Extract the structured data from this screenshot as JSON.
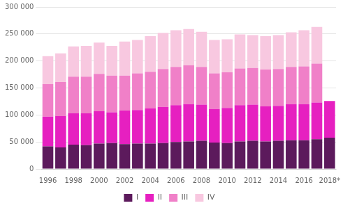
{
  "chart_data": {
    "type": "bar",
    "stacked": true,
    "categories": [
      "1996",
      null,
      "1998",
      null,
      "2000",
      null,
      "2002",
      null,
      "2004",
      null,
      "2006",
      null,
      "2008",
      null,
      "2010",
      null,
      "2012",
      null,
      "2014",
      null,
      "2016",
      null,
      "2018*"
    ],
    "series": [
      {
        "name": "I",
        "color": "#5c1a5c",
        "values": [
          42000,
          40000,
          45000,
          44000,
          47000,
          48000,
          46000,
          47000,
          47000,
          48000,
          50000,
          51000,
          52000,
          49000,
          48000,
          51000,
          52000,
          51000,
          52000,
          53000,
          53000,
          55000,
          58000
        ]
      },
      {
        "name": "II",
        "color": "#e620c0",
        "values": [
          55000,
          58000,
          58000,
          59000,
          60000,
          57000,
          62000,
          62000,
          65000,
          67000,
          68000,
          69000,
          67000,
          62000,
          65000,
          67000,
          67000,
          65000,
          65000,
          67000,
          67000,
          68000,
          68000
        ]
      },
      {
        "name": "III",
        "color": "#f080c8",
        "values": [
          60000,
          63000,
          68000,
          68000,
          69000,
          68000,
          65000,
          68000,
          68000,
          70000,
          71000,
          72000,
          70000,
          66000,
          66000,
          68000,
          68000,
          68000,
          68000,
          69000,
          70000,
          72000,
          0
        ]
      },
      {
        "name": "IV",
        "color": "#f8c8e0",
        "values": [
          52000,
          53000,
          56000,
          57000,
          58000,
          55000,
          63000,
          62000,
          66000,
          67000,
          68000,
          67000,
          65000,
          62000,
          61000,
          63000,
          61000,
          62000,
          63000,
          64000,
          67000,
          68000,
          0
        ]
      }
    ],
    "ylim": [
      0,
      300000
    ],
    "yticks": [
      0,
      {
        "value": 50000,
        "label": "50 000"
      },
      {
        "value": 100000,
        "label": "100 000"
      },
      {
        "value": 150000,
        "label": "150 000"
      },
      {
        "value": 200000,
        "label": "200 000"
      },
      {
        "value": 250000,
        "label": "250 000"
      },
      {
        "value": 300000,
        "label": "300 000"
      }
    ],
    "grid": true,
    "legend": "bottom"
  }
}
